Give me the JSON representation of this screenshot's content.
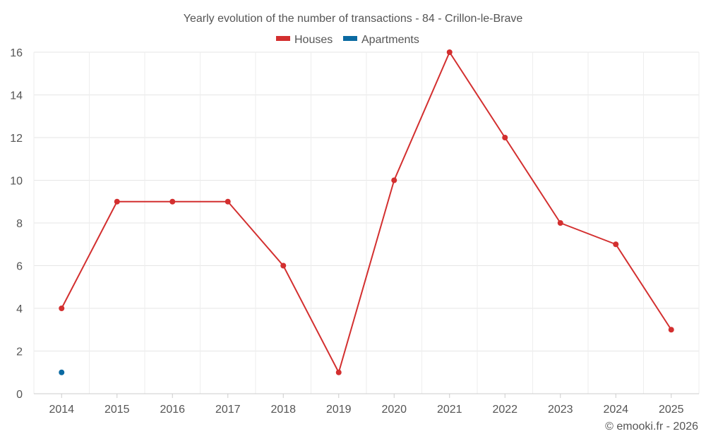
{
  "chart_data": {
    "type": "line",
    "title": "Yearly evolution of the number of transactions - 84 - Crillon-le-Brave",
    "categories": [
      "2014",
      "2015",
      "2016",
      "2017",
      "2018",
      "2019",
      "2020",
      "2021",
      "2022",
      "2023",
      "2024",
      "2025"
    ],
    "series": [
      {
        "name": "Houses",
        "color": "#d32f2f",
        "values": [
          4,
          9,
          9,
          9,
          6,
          1,
          10,
          16,
          12,
          8,
          7,
          3
        ]
      },
      {
        "name": "Apartments",
        "color": "#0b6aa2",
        "values": [
          1,
          null,
          null,
          null,
          null,
          null,
          null,
          null,
          null,
          null,
          null,
          null
        ]
      }
    ],
    "ylim": [
      0,
      16
    ],
    "yticks": [
      "0",
      "2",
      "4",
      "6",
      "8",
      "10",
      "12",
      "14",
      "16"
    ],
    "grid": true,
    "legend_position": "top-center",
    "xlabel": "",
    "ylabel": ""
  },
  "footer": "© emooki.fr - 2026"
}
